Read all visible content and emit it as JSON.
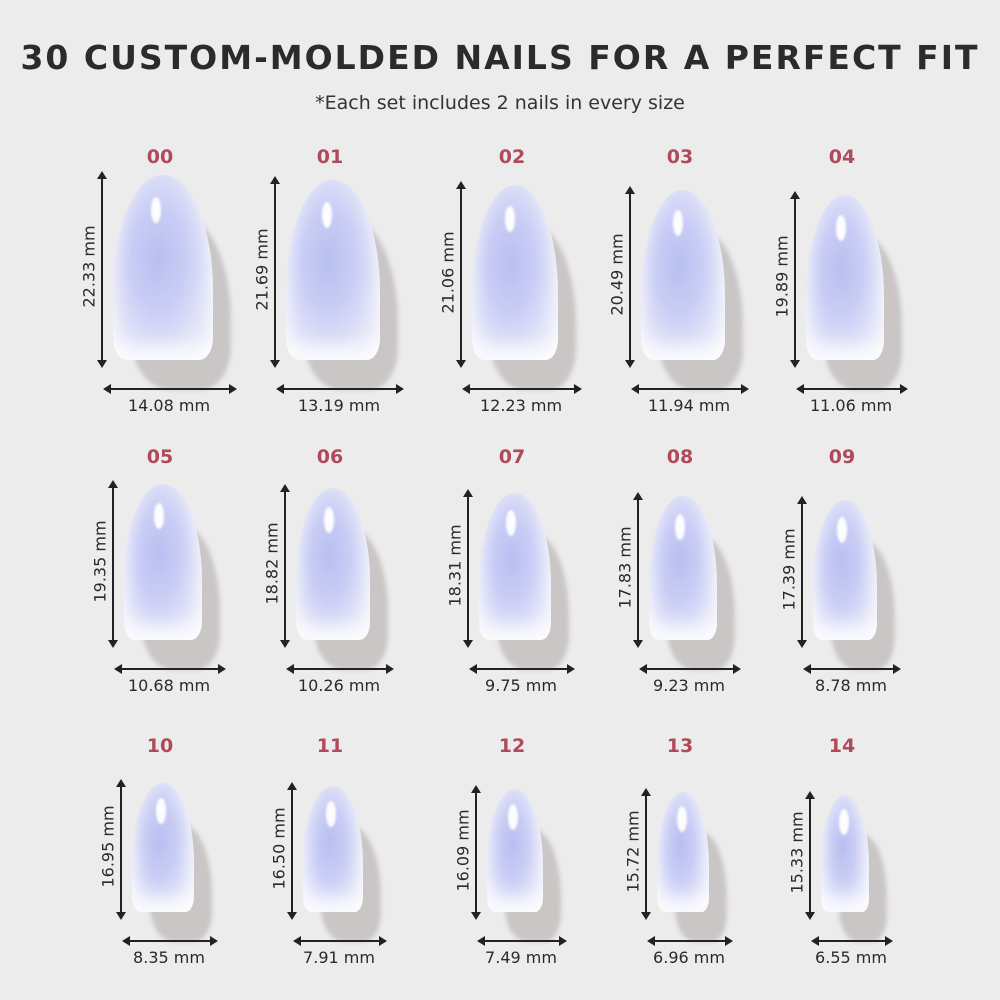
{
  "title": "30 CUSTOM-MOLDED NAILS FOR A PERFECT FIT",
  "subtitle": "*Each set includes 2 nails in every size",
  "colors": {
    "background": "#ececec",
    "size_label": "#b04a5a",
    "text": "#2a2a2a",
    "nail": "#c9cdf5"
  },
  "nails": [
    {
      "size": "00",
      "length": "22.33 mm",
      "width": "14.08 mm"
    },
    {
      "size": "01",
      "length": "21.69 mm",
      "width": "13.19 mm"
    },
    {
      "size": "02",
      "length": "21.06 mm",
      "width": "12.23 mm"
    },
    {
      "size": "03",
      "length": "20.49 mm",
      "width": "11.94 mm"
    },
    {
      "size": "04",
      "length": "19.89 mm",
      "width": "11.06 mm"
    },
    {
      "size": "05",
      "length": "19.35 mm",
      "width": "10.68 mm"
    },
    {
      "size": "06",
      "length": "18.82 mm",
      "width": "10.26 mm"
    },
    {
      "size": "07",
      "length": "18.31 mm",
      "width": "9.75 mm"
    },
    {
      "size": "08",
      "length": "17.83 mm",
      "width": "9.23 mm"
    },
    {
      "size": "09",
      "length": "17.39 mm",
      "width": "8.78 mm"
    },
    {
      "size": "10",
      "length": "16.95 mm",
      "width": "8.35 mm"
    },
    {
      "size": "11",
      "length": "16.50 mm",
      "width": "7.91 mm"
    },
    {
      "size": "12",
      "length": "16.09 mm",
      "width": "7.49 mm"
    },
    {
      "size": "13",
      "length": "15.72 mm",
      "width": "6.96 mm"
    },
    {
      "size": "14",
      "length": "15.33 mm",
      "width": "6.55 mm"
    }
  ]
}
